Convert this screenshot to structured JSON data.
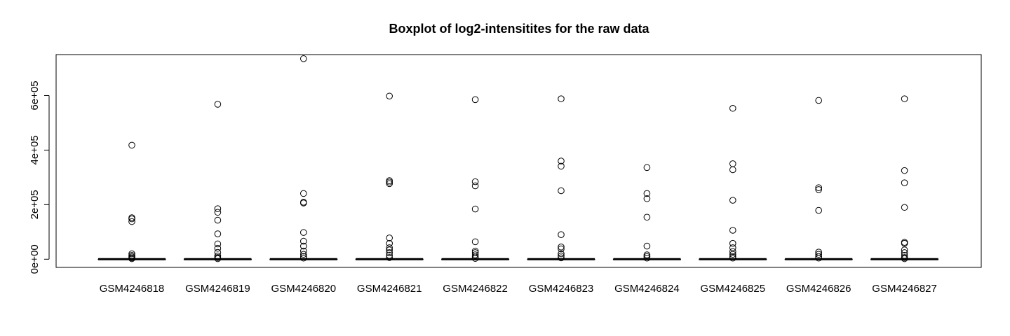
{
  "chart_data": {
    "type": "boxplot",
    "title": "Boxplot of log2-intensitites for the raw data",
    "xlabel": "",
    "ylabel": "",
    "ylim": [
      -30000,
      750000
    ],
    "yticks": [
      0,
      200000,
      400000,
      600000
    ],
    "ytick_labels": [
      "0e+00",
      "2e+05",
      "4e+05",
      "6e+05"
    ],
    "grid": false,
    "categories": [
      "GSM4246818",
      "GSM4246819",
      "GSM4246820",
      "GSM4246821",
      "GSM4246822",
      "GSM4246823",
      "GSM4246824",
      "GSM4246825",
      "GSM4246826",
      "GSM4246827"
    ],
    "series": [
      {
        "q1": 0,
        "median": 0,
        "q3": 0,
        "outliers": [
          418000,
          152000,
          148000,
          138000,
          20000,
          14000,
          9000,
          5000,
          2000
        ]
      },
      {
        "q1": 0,
        "median": 0,
        "q3": 0,
        "outliers": [
          568000,
          185000,
          172000,
          143000,
          93000,
          56000,
          40000,
          25000,
          12000,
          6000,
          2000
        ]
      },
      {
        "q1": 0,
        "median": 0,
        "q3": 0,
        "outliers": [
          735000,
          241000,
          209000,
          206000,
          98000,
          66000,
          48000,
          30000,
          18000,
          10000,
          4000
        ]
      },
      {
        "q1": 0,
        "median": 0,
        "q3": 0,
        "outliers": [
          598000,
          288000,
          283000,
          277000,
          78000,
          58000,
          42000,
          34000,
          24000,
          14000,
          6000
        ]
      },
      {
        "q1": 0,
        "median": 0,
        "q3": 0,
        "outliers": [
          585000,
          284000,
          269000,
          184000,
          64000,
          30000,
          24000,
          16000,
          8000,
          3000
        ]
      },
      {
        "q1": 0,
        "median": 0,
        "q3": 0,
        "outliers": [
          588000,
          360000,
          341000,
          251000,
          90000,
          45000,
          38000,
          20000,
          12000,
          5000
        ]
      },
      {
        "q1": 0,
        "median": 0,
        "q3": 0,
        "outliers": [
          336000,
          241000,
          222000,
          154000,
          48000,
          16000,
          10000,
          4000
        ]
      },
      {
        "q1": 0,
        "median": 0,
        "q3": 0,
        "outliers": [
          553000,
          350000,
          328000,
          216000,
          106000,
          58000,
          42000,
          28000,
          18000,
          10000,
          4000
        ]
      },
      {
        "q1": 0,
        "median": 0,
        "q3": 0,
        "outliers": [
          582000,
          262000,
          255000,
          179000,
          26000,
          18000,
          10000,
          4000
        ]
      },
      {
        "q1": 0,
        "median": 0,
        "q3": 0,
        "outliers": [
          588000,
          325000,
          280000,
          190000,
          62000,
          58000,
          34000,
          24000,
          14000,
          6000,
          2000
        ]
      }
    ]
  }
}
